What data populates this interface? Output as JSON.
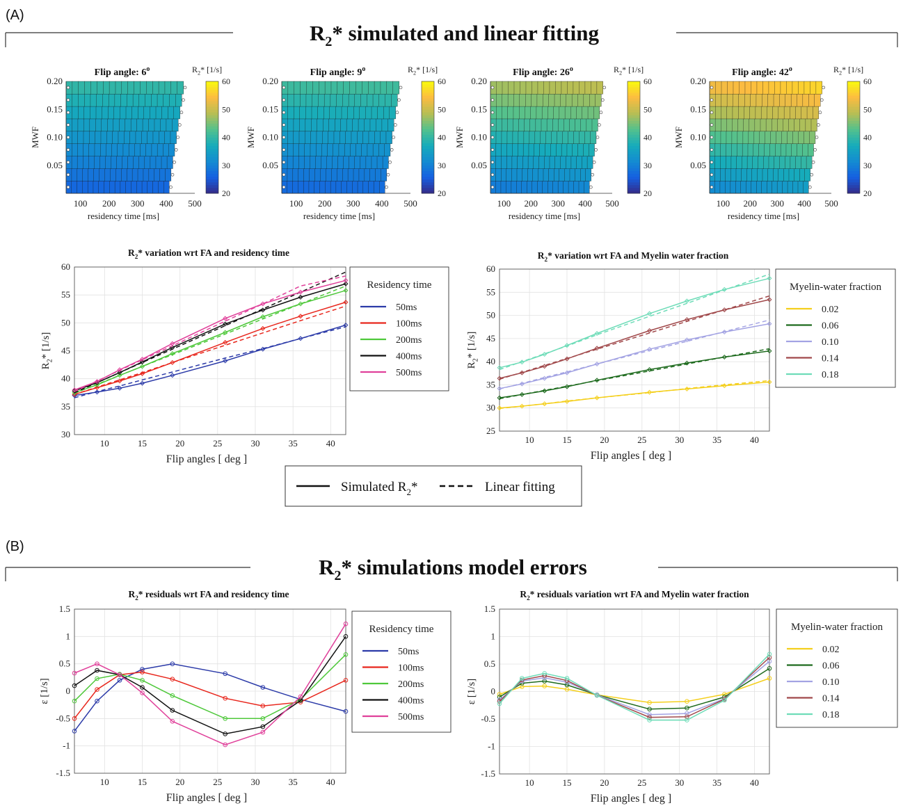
{
  "panel_a": {
    "tag": "(A)",
    "title_main": "R",
    "title_sub": "2",
    "title_rest": "* simulated and linear fitting"
  },
  "panel_b": {
    "tag": "(B)",
    "title_main": "R",
    "title_sub": "2",
    "title_rest": "* simulations model errors"
  },
  "colors": {
    "res_50": "#2b3aa8",
    "res_100": "#e8261c",
    "res_200": "#4ec83a",
    "res_400": "#111111",
    "res_500": "#e0409a",
    "mwf_002": "#f4cf1c",
    "mwf_006": "#1d6a1d",
    "mwf_010": "#a3a3e3",
    "mwf_014": "#a0484a",
    "mwf_018": "#6edcb8"
  },
  "shared_legend": {
    "simulated_main": "Simulated R",
    "simulated_sub": "2",
    "simulated_rest": "*",
    "fit_label": "Linear fitting"
  },
  "chart_data": [
    {
      "type": "heatmap",
      "id": "hm1",
      "title_main": "Flip angle: 6",
      "title_sup": "o",
      "xlabel": "residency time [ms]",
      "ylabel": "MWF",
      "xlim": [
        50,
        500
      ],
      "ylim": [
        0,
        0.2
      ],
      "xticks": [
        100,
        200,
        300,
        400,
        500
      ],
      "yticks": [
        0.05,
        0.1,
        0.15,
        0.2
      ],
      "ytick_labels": [
        "0.05",
        "0.10",
        "0.15",
        "0.20"
      ],
      "colorbar": {
        "label_main": "R",
        "label_sub": "2",
        "label_rest": "* [1/s]",
        "ticks": [
          20,
          30,
          40,
          50,
          60
        ],
        "range": [
          20,
          60
        ]
      },
      "fa_index": 0
    },
    {
      "type": "heatmap",
      "id": "hm2",
      "title_main": "Flip angle: 9",
      "title_sup": "o",
      "xlabel": "residency time [ms]",
      "ylabel": "MWF",
      "xlim": [
        50,
        500
      ],
      "ylim": [
        0,
        0.2
      ],
      "xticks": [
        100,
        200,
        300,
        400,
        500
      ],
      "yticks": [
        0.05,
        0.1,
        0.15,
        0.2
      ],
      "ytick_labels": [
        "0.05",
        "0.10",
        "0.15",
        "0.20"
      ],
      "colorbar": {
        "label_main": "R",
        "label_sub": "2",
        "label_rest": "* [1/s]",
        "ticks": [
          20,
          30,
          40,
          50,
          60
        ],
        "range": [
          20,
          60
        ]
      },
      "fa_index": 1
    },
    {
      "type": "heatmap",
      "id": "hm3",
      "title_main": "Flip angle: 26",
      "title_sup": "o",
      "xlabel": "residency time [ms]",
      "ylabel": "MWF",
      "xlim": [
        50,
        500
      ],
      "ylim": [
        0,
        0.2
      ],
      "xticks": [
        100,
        200,
        300,
        400,
        500
      ],
      "yticks": [
        0.05,
        0.1,
        0.15,
        0.2
      ],
      "ytick_labels": [
        "0.05",
        "0.10",
        "0.15",
        "0.20"
      ],
      "colorbar": {
        "label_main": "R",
        "label_sub": "2",
        "label_rest": "* [1/s]",
        "ticks": [
          20,
          30,
          40,
          50,
          60
        ],
        "range": [
          20,
          60
        ]
      },
      "fa_index": 2
    },
    {
      "type": "heatmap",
      "id": "hm4",
      "title_main": "Flip angle: 42",
      "title_sup": "o",
      "xlabel": "residency time [ms]",
      "ylabel": "MWF",
      "xlim": [
        50,
        500
      ],
      "ylim": [
        0,
        0.2
      ],
      "xticks": [
        100,
        200,
        300,
        400,
        500
      ],
      "yticks": [
        0.05,
        0.1,
        0.15,
        0.2
      ],
      "ytick_labels": [
        "0.05",
        "0.10",
        "0.15",
        "0.20"
      ],
      "colorbar": {
        "label_main": "R",
        "label_sub": "2",
        "label_rest": "* [1/s]",
        "ticks": [
          20,
          30,
          40,
          50,
          60
        ],
        "range": [
          20,
          60
        ]
      },
      "fa_index": 3
    },
    {
      "type": "line",
      "id": "line_res",
      "title_main": "R",
      "title_sub": "2",
      "title_rest": "* variation wrt FA and residency time",
      "xlabel": "Flip angles [ deg ]",
      "ylabel_main": "R",
      "ylabel_sub": "2",
      "ylabel_rest": "* [1/s]",
      "xlim": [
        6,
        42
      ],
      "ylim": [
        30,
        60
      ],
      "xticks": [
        10,
        15,
        20,
        25,
        30,
        35,
        40
      ],
      "yticks": [
        30,
        35,
        40,
        45,
        50,
        55,
        60
      ],
      "grid": true,
      "legend_title": "Residency time",
      "legend_position": "right-outside",
      "x": [
        6,
        9,
        12,
        15,
        19,
        26,
        31,
        36,
        42
      ],
      "series": [
        {
          "name": "50ms",
          "color_key": "res_50",
          "values": [
            37.0,
            37.6,
            38.3,
            39.2,
            40.6,
            43.2,
            45.3,
            47.2,
            49.6
          ],
          "fit": [
            36.6,
            37.7,
            38.7,
            39.8,
            41.2,
            43.7,
            45.4,
            47.2,
            49.3
          ]
        },
        {
          "name": "100ms",
          "color_key": "res_100",
          "values": [
            37.2,
            38.4,
            39.6,
            40.9,
            42.9,
            46.5,
            49.0,
            51.2,
            53.7
          ],
          "fit": [
            37.2,
            38.5,
            39.8,
            41.1,
            42.9,
            46.0,
            48.2,
            50.4,
            53.0
          ]
        },
        {
          "name": "200ms",
          "color_key": "res_200",
          "values": [
            37.5,
            38.9,
            40.6,
            42.2,
            44.5,
            48.3,
            51.1,
            53.4,
            55.8
          ],
          "fit": [
            37.4,
            39.0,
            40.6,
            42.2,
            44.3,
            48.0,
            50.7,
            53.4,
            56.6
          ]
        },
        {
          "name": "400ms",
          "color_key": "res_400",
          "values": [
            37.8,
            39.3,
            41.1,
            43.0,
            45.6,
            49.8,
            52.3,
            54.6,
            57.0
          ],
          "fit": [
            37.5,
            39.3,
            41.1,
            42.9,
            45.3,
            49.5,
            52.5,
            55.5,
            59.1
          ]
        },
        {
          "name": "500ms",
          "color_key": "res_500",
          "values": [
            38.0,
            39.5,
            41.6,
            43.5,
            46.3,
            50.8,
            53.4,
            55.5,
            57.6
          ],
          "fit": [
            37.7,
            39.6,
            41.5,
            43.4,
            45.9,
            50.3,
            53.4,
            56.6,
            58.4
          ]
        }
      ]
    },
    {
      "type": "line",
      "id": "line_mwf",
      "title_main": "R",
      "title_sub": "2",
      "title_rest": "* variation wrt FA and Myelin water fraction",
      "xlabel": "Flip angles [ deg ]",
      "ylabel_main": "R",
      "ylabel_sub": "2",
      "ylabel_rest": "* [1/s]",
      "xlim": [
        6,
        42
      ],
      "ylim": [
        25,
        60
      ],
      "xticks": [
        10,
        15,
        20,
        25,
        30,
        35,
        40
      ],
      "yticks": [
        25,
        30,
        35,
        40,
        45,
        50,
        55,
        60
      ],
      "grid": true,
      "legend_title": "Myelin-water fraction",
      "legend_position": "right-outside",
      "x": [
        6,
        9,
        12,
        15,
        19,
        26,
        31,
        36,
        42
      ],
      "series": [
        {
          "name": "0.02",
          "color_key": "mwf_002",
          "values": [
            30.0,
            30.4,
            30.9,
            31.4,
            32.2,
            33.4,
            34.1,
            34.8,
            35.6
          ],
          "fit": [
            29.9,
            30.4,
            30.9,
            31.5,
            32.2,
            33.3,
            34.2,
            35.0,
            35.9
          ]
        },
        {
          "name": "0.06",
          "color_key": "mwf_006",
          "values": [
            32.2,
            32.9,
            33.7,
            34.6,
            36.0,
            38.3,
            39.7,
            41.0,
            42.3
          ],
          "fit": [
            32.0,
            32.9,
            33.8,
            34.7,
            35.9,
            38.0,
            39.5,
            41.0,
            42.8
          ]
        },
        {
          "name": "0.10",
          "color_key": "mwf_010",
          "values": [
            34.2,
            35.2,
            36.4,
            37.6,
            39.5,
            42.7,
            44.7,
            46.4,
            48.2
          ],
          "fit": [
            34.1,
            35.3,
            36.6,
            37.8,
            39.5,
            42.4,
            44.4,
            46.5,
            49.0
          ]
        },
        {
          "name": "0.14",
          "color_key": "mwf_014",
          "values": [
            36.4,
            37.6,
            39.0,
            40.6,
            42.9,
            46.7,
            49.1,
            51.2,
            53.4
          ],
          "fit": [
            36.2,
            37.7,
            39.2,
            40.7,
            42.7,
            46.2,
            48.7,
            51.2,
            54.2
          ]
        },
        {
          "name": "0.18",
          "color_key": "mwf_018",
          "values": [
            38.7,
            39.9,
            41.6,
            43.5,
            46.1,
            50.4,
            53.1,
            55.6,
            58.0
          ],
          "fit": [
            38.3,
            40.0,
            41.7,
            43.4,
            45.8,
            49.8,
            52.6,
            55.5,
            58.9
          ]
        }
      ]
    },
    {
      "type": "line",
      "id": "err_res",
      "title_main": "R",
      "title_sub": "2",
      "title_rest": "* residuals wrt FA and residency time",
      "xlabel": "Flip angles [ deg ]",
      "ylabel_main": "ε [1/s]",
      "xlim": [
        6,
        42
      ],
      "ylim": [
        -1.5,
        1.5
      ],
      "xticks": [
        10,
        15,
        20,
        25,
        30,
        35,
        40
      ],
      "yticks": [
        -1.5,
        -1,
        -0.5,
        0,
        0.5,
        1,
        1.5
      ],
      "ytick_labels": [
        "-1.5",
        "-1",
        "-0.5",
        "0",
        "0.5",
        "1",
        "1.5"
      ],
      "grid": true,
      "legend_title": "Residency time",
      "legend_position": "right-outside",
      "x": [
        6,
        9,
        12,
        15,
        19,
        26,
        31,
        36,
        42
      ],
      "series": [
        {
          "name": "50ms",
          "color_key": "res_50",
          "values": [
            -0.73,
            -0.18,
            0.2,
            0.4,
            0.5,
            0.32,
            0.07,
            -0.15,
            -0.37
          ]
        },
        {
          "name": "100ms",
          "color_key": "res_100",
          "values": [
            -0.5,
            0.03,
            0.3,
            0.35,
            0.22,
            -0.13,
            -0.27,
            -0.2,
            0.2
          ]
        },
        {
          "name": "200ms",
          "color_key": "res_200",
          "values": [
            -0.18,
            0.23,
            0.31,
            0.2,
            -0.08,
            -0.5,
            -0.5,
            -0.15,
            0.67
          ]
        },
        {
          "name": "400ms",
          "color_key": "res_400",
          "values": [
            0.1,
            0.38,
            0.3,
            0.07,
            -0.35,
            -0.78,
            -0.65,
            -0.17,
            1.0
          ]
        },
        {
          "name": "500ms",
          "color_key": "res_500",
          "values": [
            0.33,
            0.5,
            0.3,
            -0.03,
            -0.55,
            -0.98,
            -0.75,
            -0.1,
            1.23
          ]
        }
      ]
    },
    {
      "type": "line",
      "id": "err_mwf",
      "title_main": "R",
      "title_sub": "2",
      "title_rest": "* residuals variation wrt FA and Myelin water fraction",
      "xlabel": "Flip angles [ deg ]",
      "ylabel_main": "ε [1/s]",
      "xlim": [
        6,
        42
      ],
      "ylim": [
        -1.5,
        1.5
      ],
      "xticks": [
        10,
        15,
        20,
        25,
        30,
        35,
        40
      ],
      "yticks": [
        -1.5,
        -1,
        -0.5,
        0,
        0.5,
        1,
        1.5
      ],
      "ytick_labels": [
        "-1.5",
        "-1",
        "-0.5",
        "0",
        "0.5",
        "1",
        "1.5"
      ],
      "grid": true,
      "legend_title": "Myelin-water fraction",
      "legend_position": "right-outside",
      "x": [
        6,
        9,
        12,
        15,
        19,
        26,
        31,
        36,
        42
      ],
      "series": [
        {
          "name": "0.02",
          "color_key": "mwf_002",
          "values": [
            -0.05,
            0.09,
            0.1,
            0.04,
            -0.06,
            -0.2,
            -0.18,
            -0.05,
            0.24
          ]
        },
        {
          "name": "0.06",
          "color_key": "mwf_006",
          "values": [
            -0.1,
            0.15,
            0.19,
            0.12,
            -0.06,
            -0.32,
            -0.3,
            -0.1,
            0.42
          ]
        },
        {
          "name": "0.10",
          "color_key": "mwf_010",
          "values": [
            -0.15,
            0.19,
            0.25,
            0.17,
            -0.06,
            -0.42,
            -0.4,
            -0.13,
            0.55
          ]
        },
        {
          "name": "0.14",
          "color_key": "mwf_014",
          "values": [
            -0.18,
            0.21,
            0.29,
            0.2,
            -0.07,
            -0.47,
            -0.46,
            -0.14,
            0.62
          ]
        },
        {
          "name": "0.18",
          "color_key": "mwf_018",
          "values": [
            -0.22,
            0.24,
            0.33,
            0.24,
            -0.07,
            -0.52,
            -0.52,
            -0.16,
            0.68
          ]
        }
      ]
    }
  ]
}
